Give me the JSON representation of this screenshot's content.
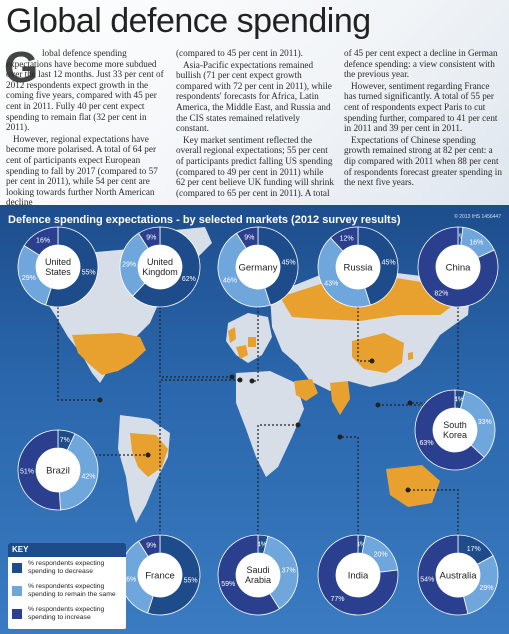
{
  "title": "Global defence spending",
  "article": {
    "dropcap": "G",
    "col1": [
      "lobal defence spending expectations have become more subdued over the last 12 months. Just 33 per cent of 2012 respondents expect growth in the coming five years, compared with 45 per cent in 2011. Fully 40 per cent expect spending to remain flat (32 per cent in 2011).",
      "However, regional expectations have become more polarised. A total of 64 per cent of participants expect European spending to fall by 2017 (compared to 57 per cent in 2011), while 54 per cent are looking towards further North American decline"
    ],
    "col2": [
      "(compared to 45 per cent in 2011).",
      "Asia-Pacific expectations remained bullish (71 per cent expect growth compared with 72 per cent in 2011), while respondents' forecasts for Africa, Latin America, the Middle East, and Russia and the CIS states remained relatively constant.",
      "Key market sentiment reflected the overall regional expectations; 55 per cent of participants predict falling US spending (compared to 49 per cent in 2011) while 62 per cent believe UK funding will shrink (compared to 65 per cent in 2011). A total"
    ],
    "col3": [
      "of 45 per cent expect a decline in German defence spending: a view consistent with the previous year.",
      "However, sentiment regarding France has turned significantly. A total of 55 per cent of respondents expect Paris to cut spending further, compared to 41 per cent in 2011 and 39 per cent in 2011.",
      "Expectations of Chinese spending growth remained strong at 82 per cent: a dip compared with 2011 when 88 per cent of respondents forecast greater spending in the next five years."
    ]
  },
  "panel": {
    "title": "Defence spending expectations - by selected markets (2012 survey results)",
    "credit": "© 2013 IHS 1456447"
  },
  "key": {
    "heading": "KEY",
    "items": [
      {
        "label": "% respondents expecting spending to decrease",
        "color": "#1e4c8a"
      },
      {
        "label": "% respondents expecting spending to remain the same",
        "color": "#6fa6dc"
      },
      {
        "label": "% respondents expecting spending to increase",
        "color": "#2b3f8f"
      }
    ]
  },
  "colors": {
    "decrease": "#1e4c8a",
    "same": "#6fa6dc",
    "increase": "#2b3f8f",
    "land": "#d7dee7",
    "highlight": "#e8a12f",
    "connector": "#222222"
  },
  "chart_data": {
    "type": "pie",
    "title": "Defence spending expectations - by selected markets (2012 survey results)",
    "series_names": [
      "% respondents expecting spending to decrease",
      "% respondents expecting spending to remain the same",
      "% respondents expecting spending to increase"
    ],
    "markets": [
      {
        "name": "United States",
        "lines": [
          "United",
          "States"
        ],
        "decrease": 55,
        "same": 29,
        "increase": 16
      },
      {
        "name": "United Kingdom",
        "lines": [
          "United",
          "Kingdom"
        ],
        "decrease": 62,
        "same": 29,
        "increase": 9
      },
      {
        "name": "Germany",
        "lines": [
          "Germany"
        ],
        "decrease": 45,
        "same": 46,
        "increase": 9
      },
      {
        "name": "Russia",
        "lines": [
          "Russia"
        ],
        "decrease": 45,
        "same": 43,
        "increase": 12
      },
      {
        "name": "China",
        "lines": [
          "China"
        ],
        "decrease": 2,
        "same": 16,
        "increase": 82
      },
      {
        "name": "South Korea",
        "lines": [
          "South",
          "Korea"
        ],
        "decrease": 4,
        "same": 33,
        "increase": 63
      },
      {
        "name": "Brazil",
        "lines": [
          "Brazil"
        ],
        "decrease": 7,
        "same": 42,
        "increase": 51
      },
      {
        "name": "France",
        "lines": [
          "France"
        ],
        "decrease": 55,
        "same": 36,
        "increase": 9
      },
      {
        "name": "Saudi Arabia",
        "lines": [
          "Saudi",
          "Arabia"
        ],
        "decrease": 4,
        "same": 37,
        "increase": 59
      },
      {
        "name": "India",
        "lines": [
          "India"
        ],
        "decrease": 3,
        "same": 20,
        "increase": 77
      },
      {
        "name": "Australia",
        "lines": [
          "Australia"
        ],
        "decrease": 17,
        "same": 29,
        "increase": 54
      }
    ]
  }
}
